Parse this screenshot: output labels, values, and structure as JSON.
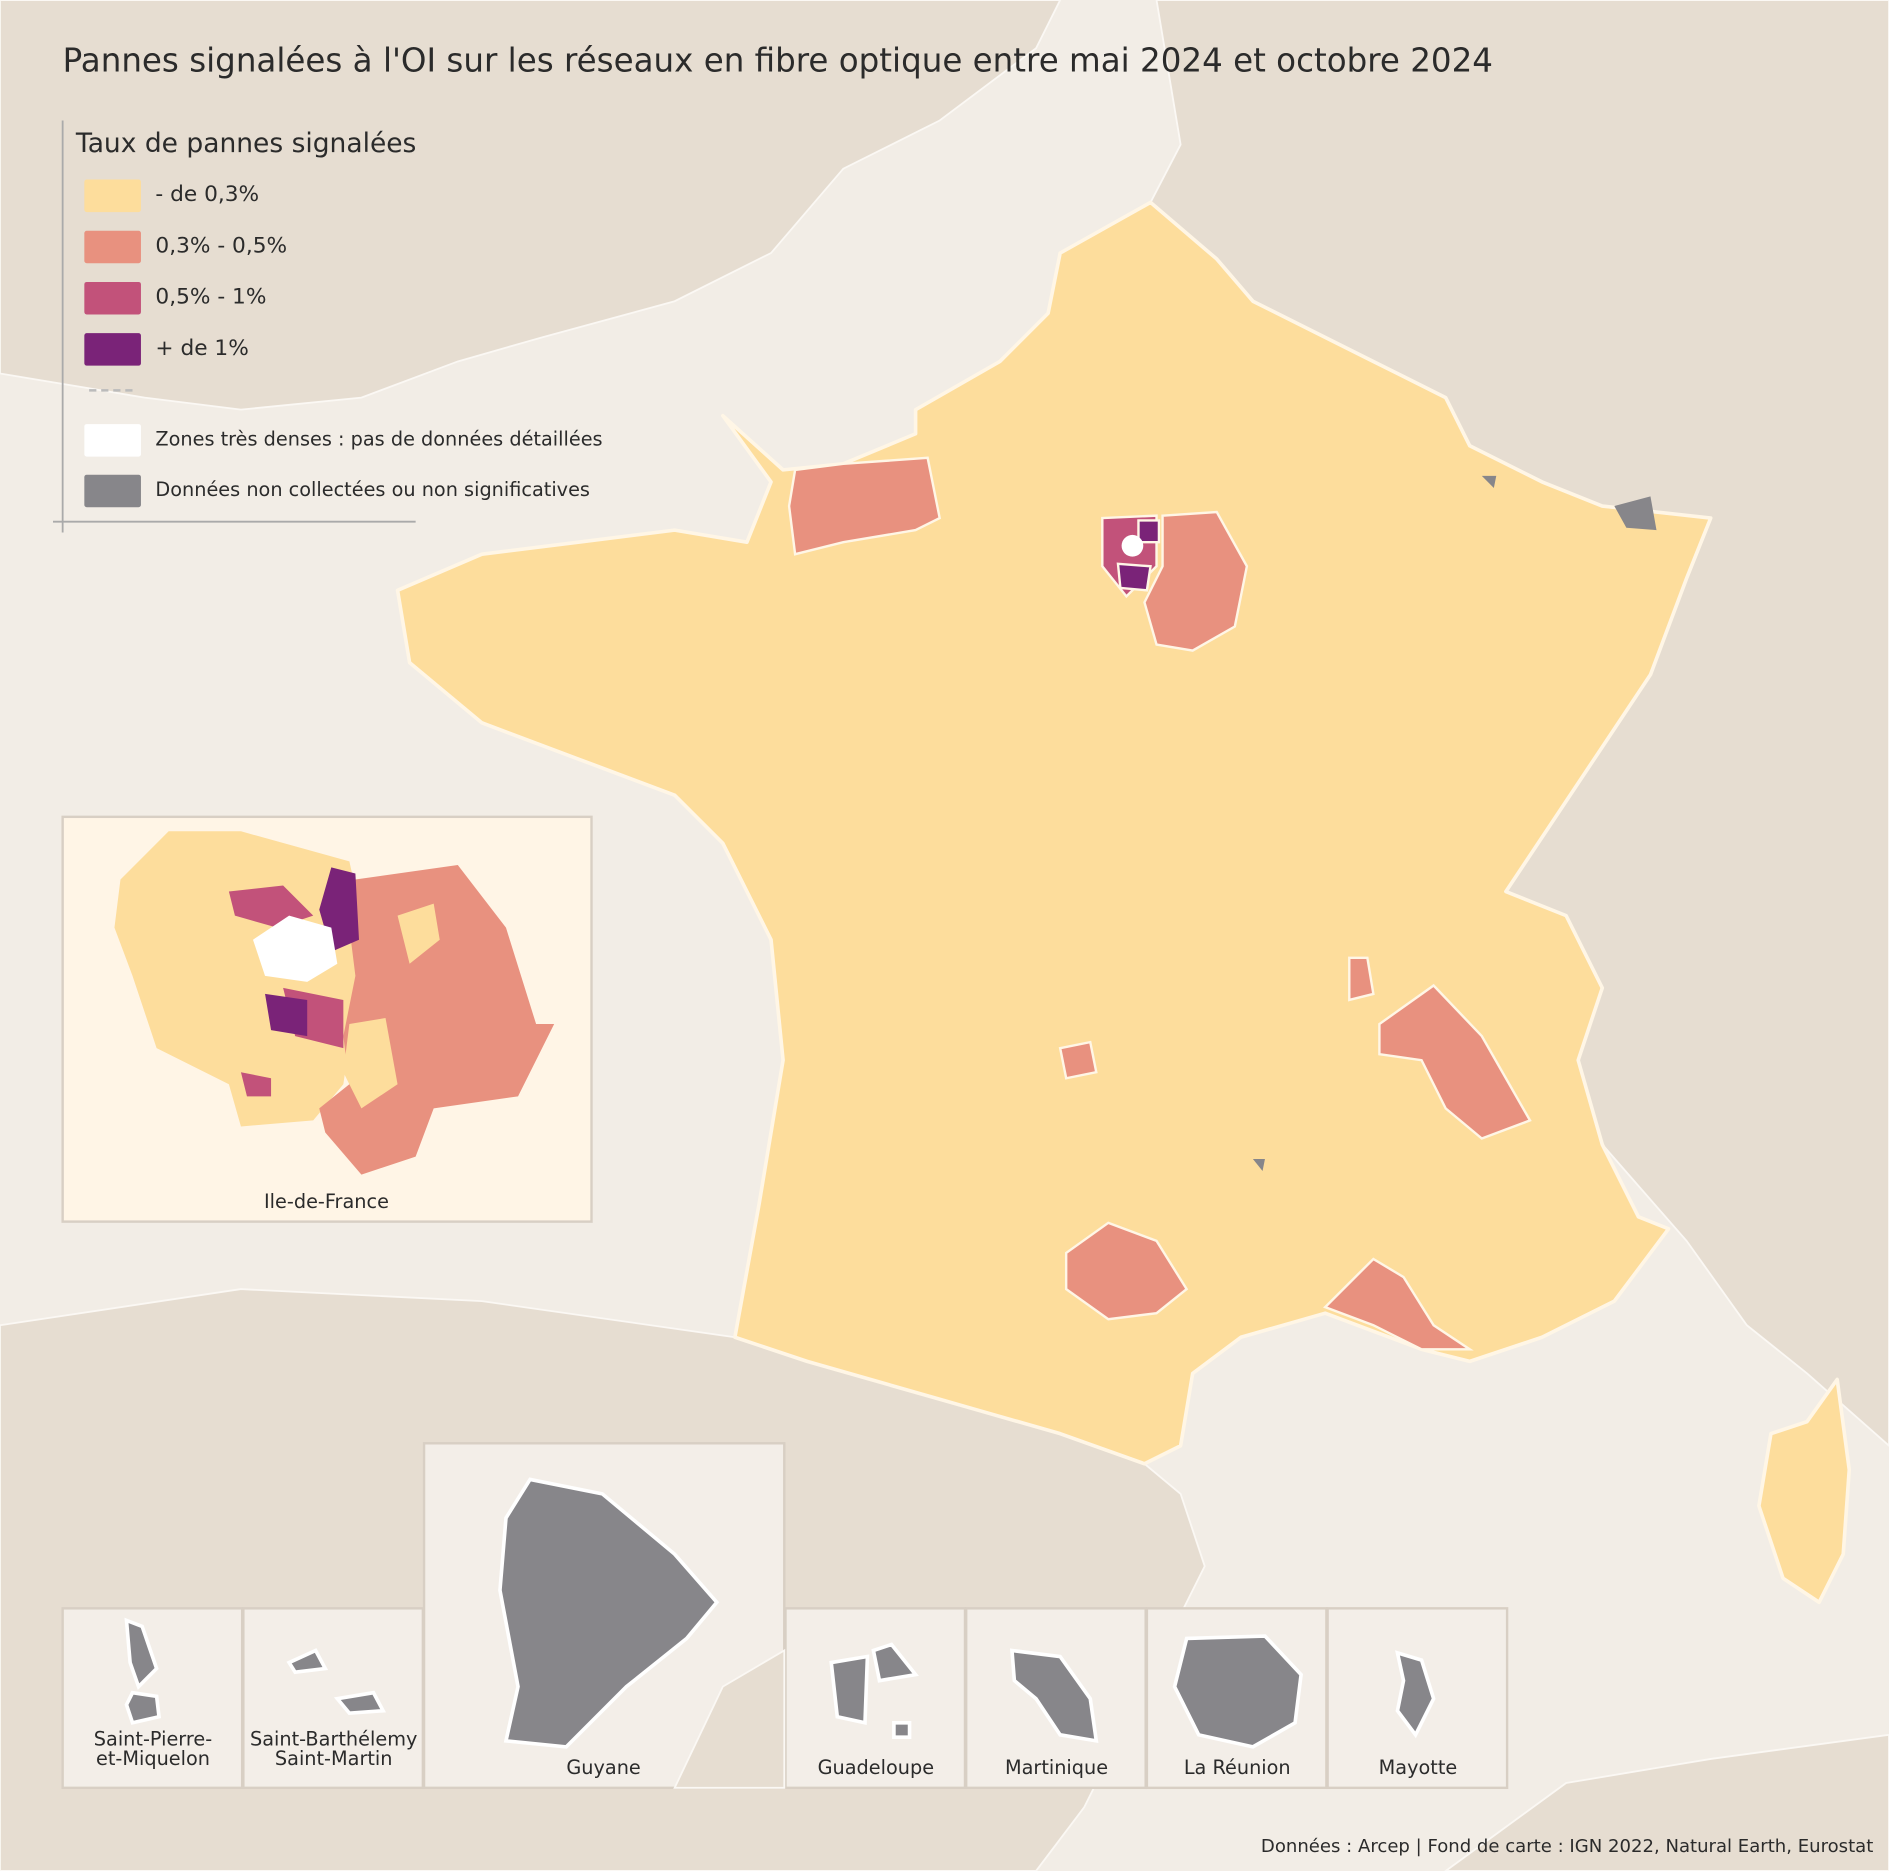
{
  "title": "Pannes signalées à l'OI sur les réseaux en fibre optique entre mai 2024 et octobre 2024",
  "legend": {
    "title": "Taux de pannes signalées",
    "items": [
      {
        "label": "- de 0,3%",
        "color": "#fddd9c"
      },
      {
        "label": "0,3% - 0,5%",
        "color": "#e8917f"
      },
      {
        "label": "0,5% - 1%",
        "color": "#c2527a"
      },
      {
        "label": "+ de 1%",
        "color": "#7a2378"
      }
    ],
    "other_items": [
      {
        "label": "Zones très denses : pas de données détaillées",
        "color": "#ffffff"
      },
      {
        "label": "Données non collectées ou non significatives",
        "color": "#87868a"
      }
    ]
  },
  "insets": [
    {
      "label": "Ile-de-France"
    },
    {
      "label": "Saint-Pierre-\net-Miquelon"
    },
    {
      "label": "Saint-Barthélemy\nSaint-Martin"
    },
    {
      "label": "Guyane"
    },
    {
      "label": "Guadeloupe"
    },
    {
      "label": "Martinique"
    },
    {
      "label": "La Réunion"
    },
    {
      "label": "Mayotte"
    }
  ],
  "source": "Données : Arcep | Fond de carte : IGN 2022, Natural Earth, Eurostat"
}
